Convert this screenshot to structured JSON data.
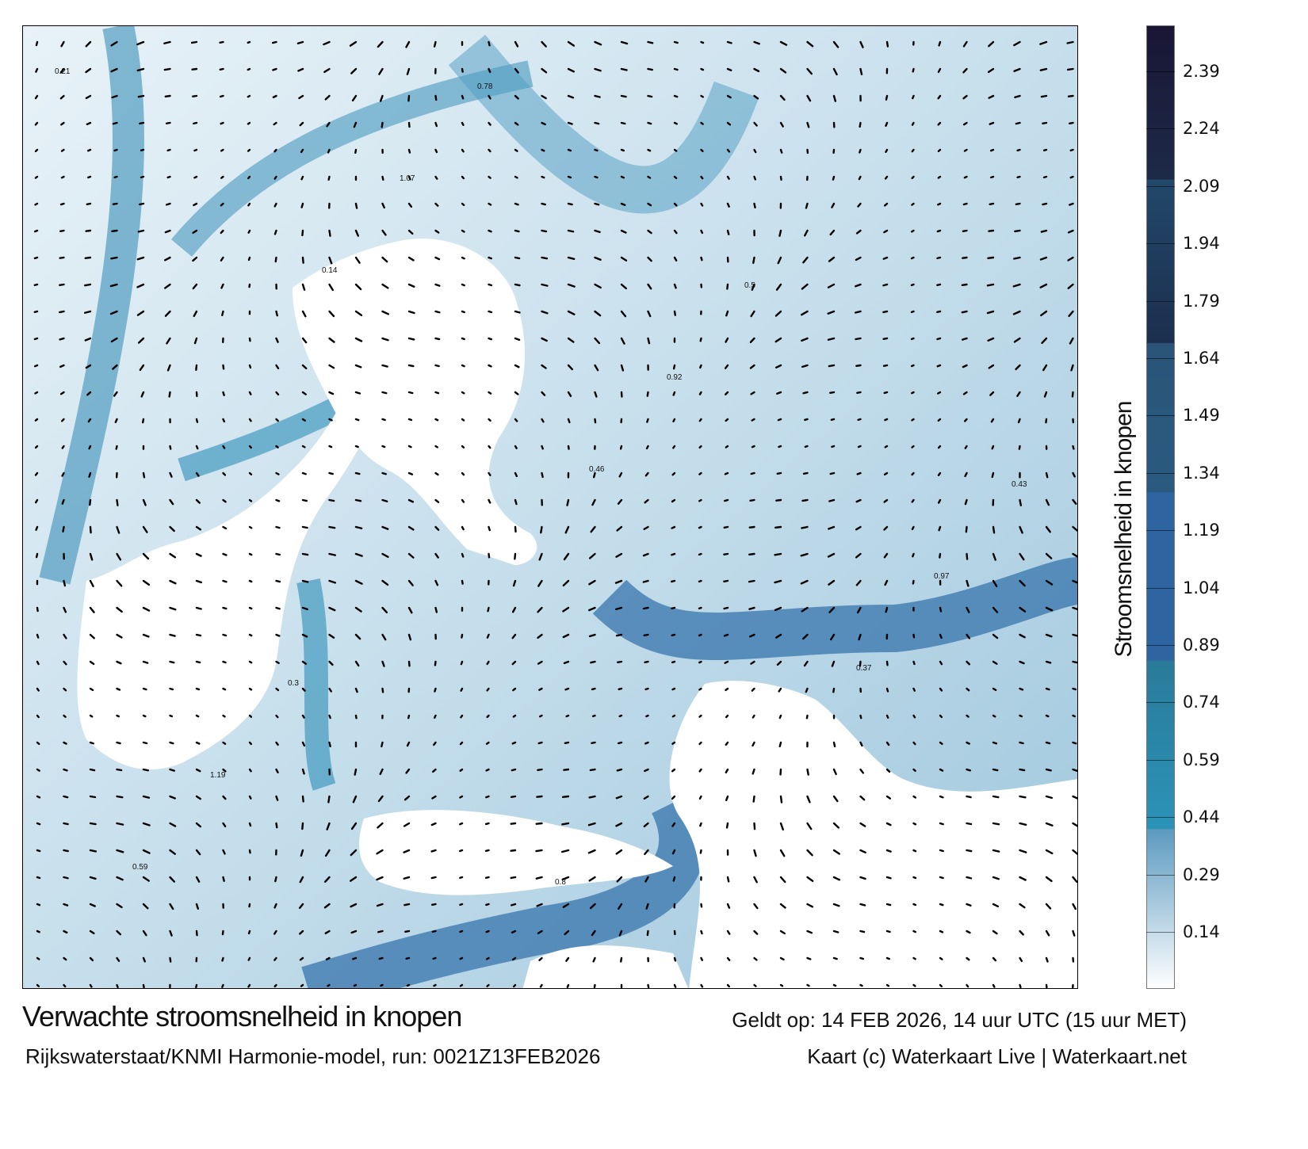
{
  "map": {
    "title": "Verwachte stroomsnelheid in knopen",
    "valid_time": "Geldt op: 14 FEB 2026, 14 uur UTC (15 uur MET)",
    "source": "Rijkswaterstaat/KNMI Harmonie-model, run: 0021Z13FEB2026",
    "credit": "Kaart (c) Waterkaart Live | Waterkaart.net",
    "sample_values": [
      "0.21",
      "0.14",
      "0.46",
      "0.37",
      "0.59",
      "1.07",
      "0.92",
      "0.97",
      "1.19",
      "0.78",
      "0.5",
      "0.43",
      "0.3",
      "0.8"
    ]
  },
  "colorbar": {
    "label": "Stroomsnelheid in knopen",
    "ticks": [
      "2.39",
      "2.24",
      "2.09",
      "1.94",
      "1.79",
      "1.64",
      "1.49",
      "1.34",
      "1.19",
      "1.04",
      "0.89",
      "0.74",
      "0.59",
      "0.44",
      "0.29",
      "0.14"
    ],
    "colors": {
      "low": "#ffffff",
      "mid_low": "#5b9ac0",
      "teal": "#2b93b8",
      "blue": "#2e64a0",
      "dark_teal": "#2a5a80",
      "navy": "#1c2e4e",
      "top": "#1a1535"
    }
  }
}
